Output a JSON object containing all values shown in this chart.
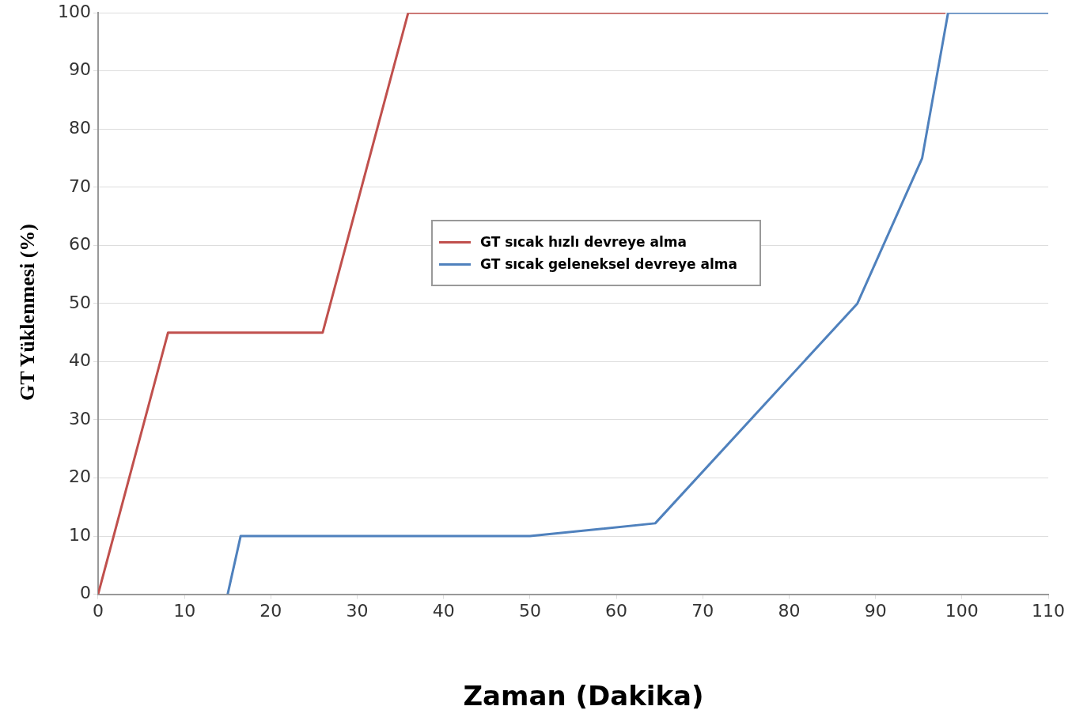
{
  "chart_data": {
    "type": "line",
    "xlabel": "Zaman (Dakika)",
    "ylabel": "GT Yüklenmesi  (%)",
    "xlim": [
      0,
      110
    ],
    "xticks": [
      0,
      10,
      20,
      30,
      40,
      50,
      60,
      70,
      80,
      90,
      100,
      110
    ],
    "ylim": [
      0,
      100
    ],
    "yticks": [
      0,
      10,
      20,
      30,
      40,
      50,
      60,
      70,
      80,
      90,
      100
    ],
    "grid": "y",
    "legend": "center",
    "marker": "none",
    "line_style": "solid",
    "series": [
      {
        "name": "GT sıcak hızlı devreye alma",
        "color": "#c0504d",
        "x": [
          0,
          8.1,
          26,
          35.9,
          98.1
        ],
        "values": [
          0,
          45,
          45,
          100,
          100
        ]
      },
      {
        "name": "GT  sıcak geleneksel devreye alma",
        "color": "#4f81bd",
        "x": [
          15,
          16.5,
          50,
          64.5,
          87.9,
          95.4,
          98.4,
          110
        ],
        "values": [
          0,
          10,
          10,
          12.2,
          50,
          75,
          100,
          100
        ]
      }
    ]
  }
}
